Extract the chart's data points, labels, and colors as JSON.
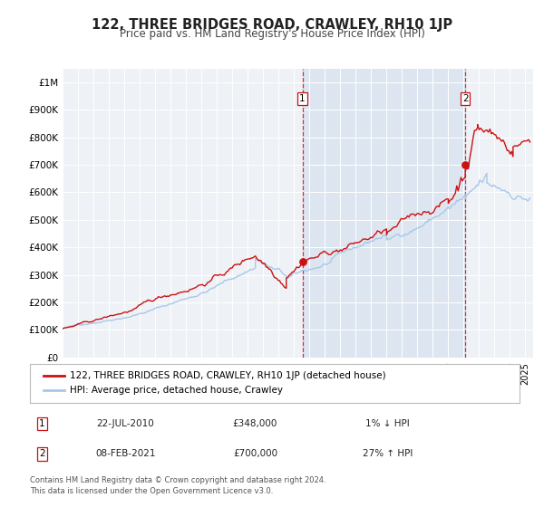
{
  "title": "122, THREE BRIDGES ROAD, CRAWLEY, RH10 1JP",
  "subtitle": "Price paid vs. HM Land Registry's House Price Index (HPI)",
  "ylabel_ticks": [
    "£0",
    "£100K",
    "£200K",
    "£300K",
    "£400K",
    "£500K",
    "£600K",
    "£700K",
    "£800K",
    "£900K",
    "£1M"
  ],
  "ytick_values": [
    0,
    100000,
    200000,
    300000,
    400000,
    500000,
    600000,
    700000,
    800000,
    900000,
    1000000
  ],
  "ylim": [
    0,
    1050000
  ],
  "xlim_start": 1995.0,
  "xlim_end": 2025.5,
  "background_color": "#ffffff",
  "plot_bg_color": "#eef2f7",
  "grid_color": "#ffffff",
  "hpi_line_color": "#a8c8e8",
  "price_line_color": "#cc1111",
  "vline_color": "#cc1111",
  "highlight_bg": "#dde6f0",
  "sale1_year": 2010.55,
  "sale1_price": 348000,
  "sale2_year": 2021.1,
  "sale2_price": 700000,
  "legend_line1": "122, THREE BRIDGES ROAD, CRAWLEY, RH10 1JP (detached house)",
  "legend_line2": "HPI: Average price, detached house, Crawley",
  "annotation1_date": "22-JUL-2010",
  "annotation1_price": "£348,000",
  "annotation1_hpi": "1% ↓ HPI",
  "annotation2_date": "08-FEB-2021",
  "annotation2_price": "£700,000",
  "annotation2_hpi": "27% ↑ HPI",
  "footer_text": "Contains HM Land Registry data © Crown copyright and database right 2024.\nThis data is licensed under the Open Government Licence v3.0."
}
